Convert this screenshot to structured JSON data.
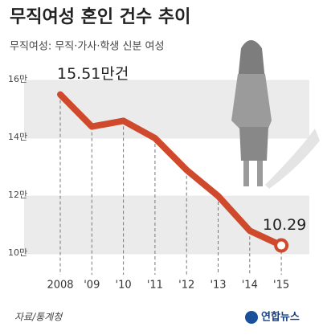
{
  "chart_data": {
    "type": "line",
    "title": "무직여성 혼인 건수 추이",
    "subtitle": "무직여성: 무직·가사·학생 신분 여성",
    "source": "자료/통계청",
    "logo": "연합뉴스",
    "categories": [
      "2008",
      "'09",
      "'10",
      "'11",
      "'12",
      "'13",
      "'14",
      "'15"
    ],
    "series": [
      {
        "name": "무직여성 혼인 건수",
        "color": "#cf4a2c",
        "values": [
          15.51,
          14.4,
          14.6,
          14.0,
          12.9,
          12.0,
          10.8,
          10.29
        ],
        "value_labels": [
          "15.51만건",
          null,
          null,
          null,
          null,
          null,
          null,
          "10.29"
        ]
      }
    ],
    "ylim": [
      10,
      16
    ],
    "yticks": [
      {
        "value": 10,
        "label": "10만"
      },
      {
        "value": 12,
        "label": "12만"
      },
      {
        "value": 14,
        "label": "14만"
      },
      {
        "value": 16,
        "label": "16만"
      }
    ],
    "grid": true
  }
}
